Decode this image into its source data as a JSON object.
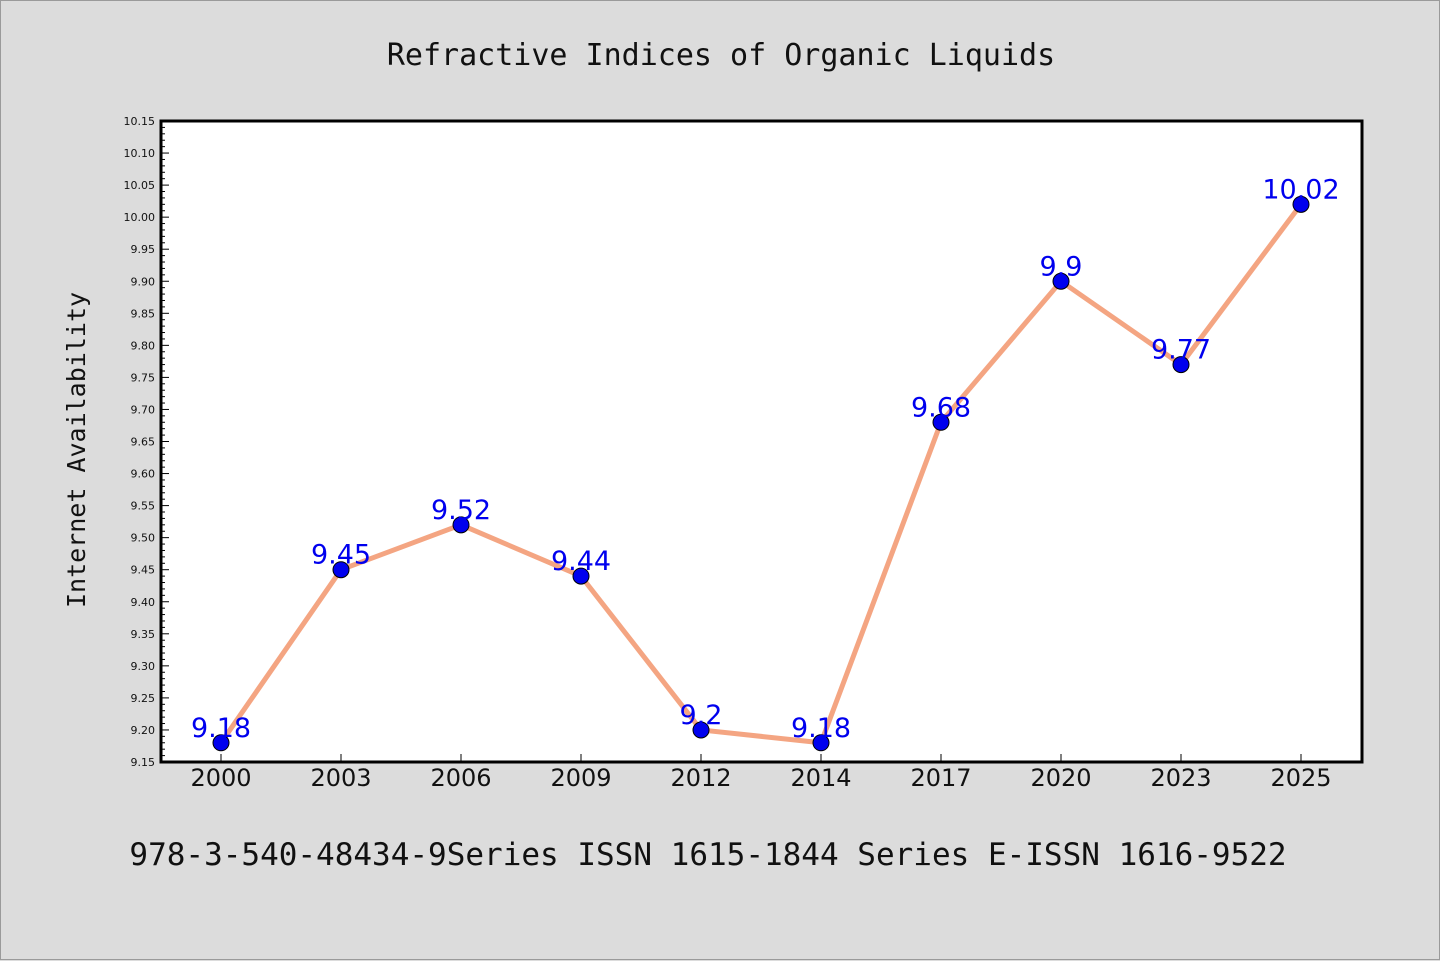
{
  "chart_data": {
    "type": "line",
    "title": "Refractive Indices of Organic Liquids",
    "xlabel": "",
    "ylabel": "Internet Availability",
    "categories": [
      "2000",
      "2003",
      "2006",
      "2009",
      "2012",
      "2014",
      "2017",
      "2020",
      "2023",
      "2025"
    ],
    "series": [
      {
        "values": [
          9.18,
          9.45,
          9.52,
          9.44,
          9.2,
          9.18,
          9.68,
          9.9,
          9.77,
          10.02
        ],
        "data_labels": [
          "9.18",
          "9.45",
          "9.52",
          "9.44",
          "9.2",
          "9.18",
          "9.68",
          "9.9",
          "9.77",
          "10.02"
        ],
        "line_color": "#f4a582",
        "marker_color": "#0000ee",
        "label_color": "#0000ee"
      }
    ],
    "ylim": [
      9.15,
      10.15
    ],
    "yticks": [
      "9.15",
      "9.20",
      "9.25",
      "9.30",
      "9.35",
      "9.40",
      "9.45",
      "9.50",
      "9.55",
      "9.60",
      "9.65",
      "9.70",
      "9.75",
      "9.80",
      "9.85",
      "9.90",
      "9.95",
      "10.00",
      "10.05",
      "10.10",
      "10.15"
    ],
    "grid": false,
    "legend": "none"
  },
  "footer": {
    "text": "978-3-540-48434-9Series ISSN 1615-1844 Series E-ISSN 1616-9522"
  },
  "colors": {
    "background": "#dcdcdc",
    "plot_background": "#ffffff",
    "axis": "#000000"
  }
}
